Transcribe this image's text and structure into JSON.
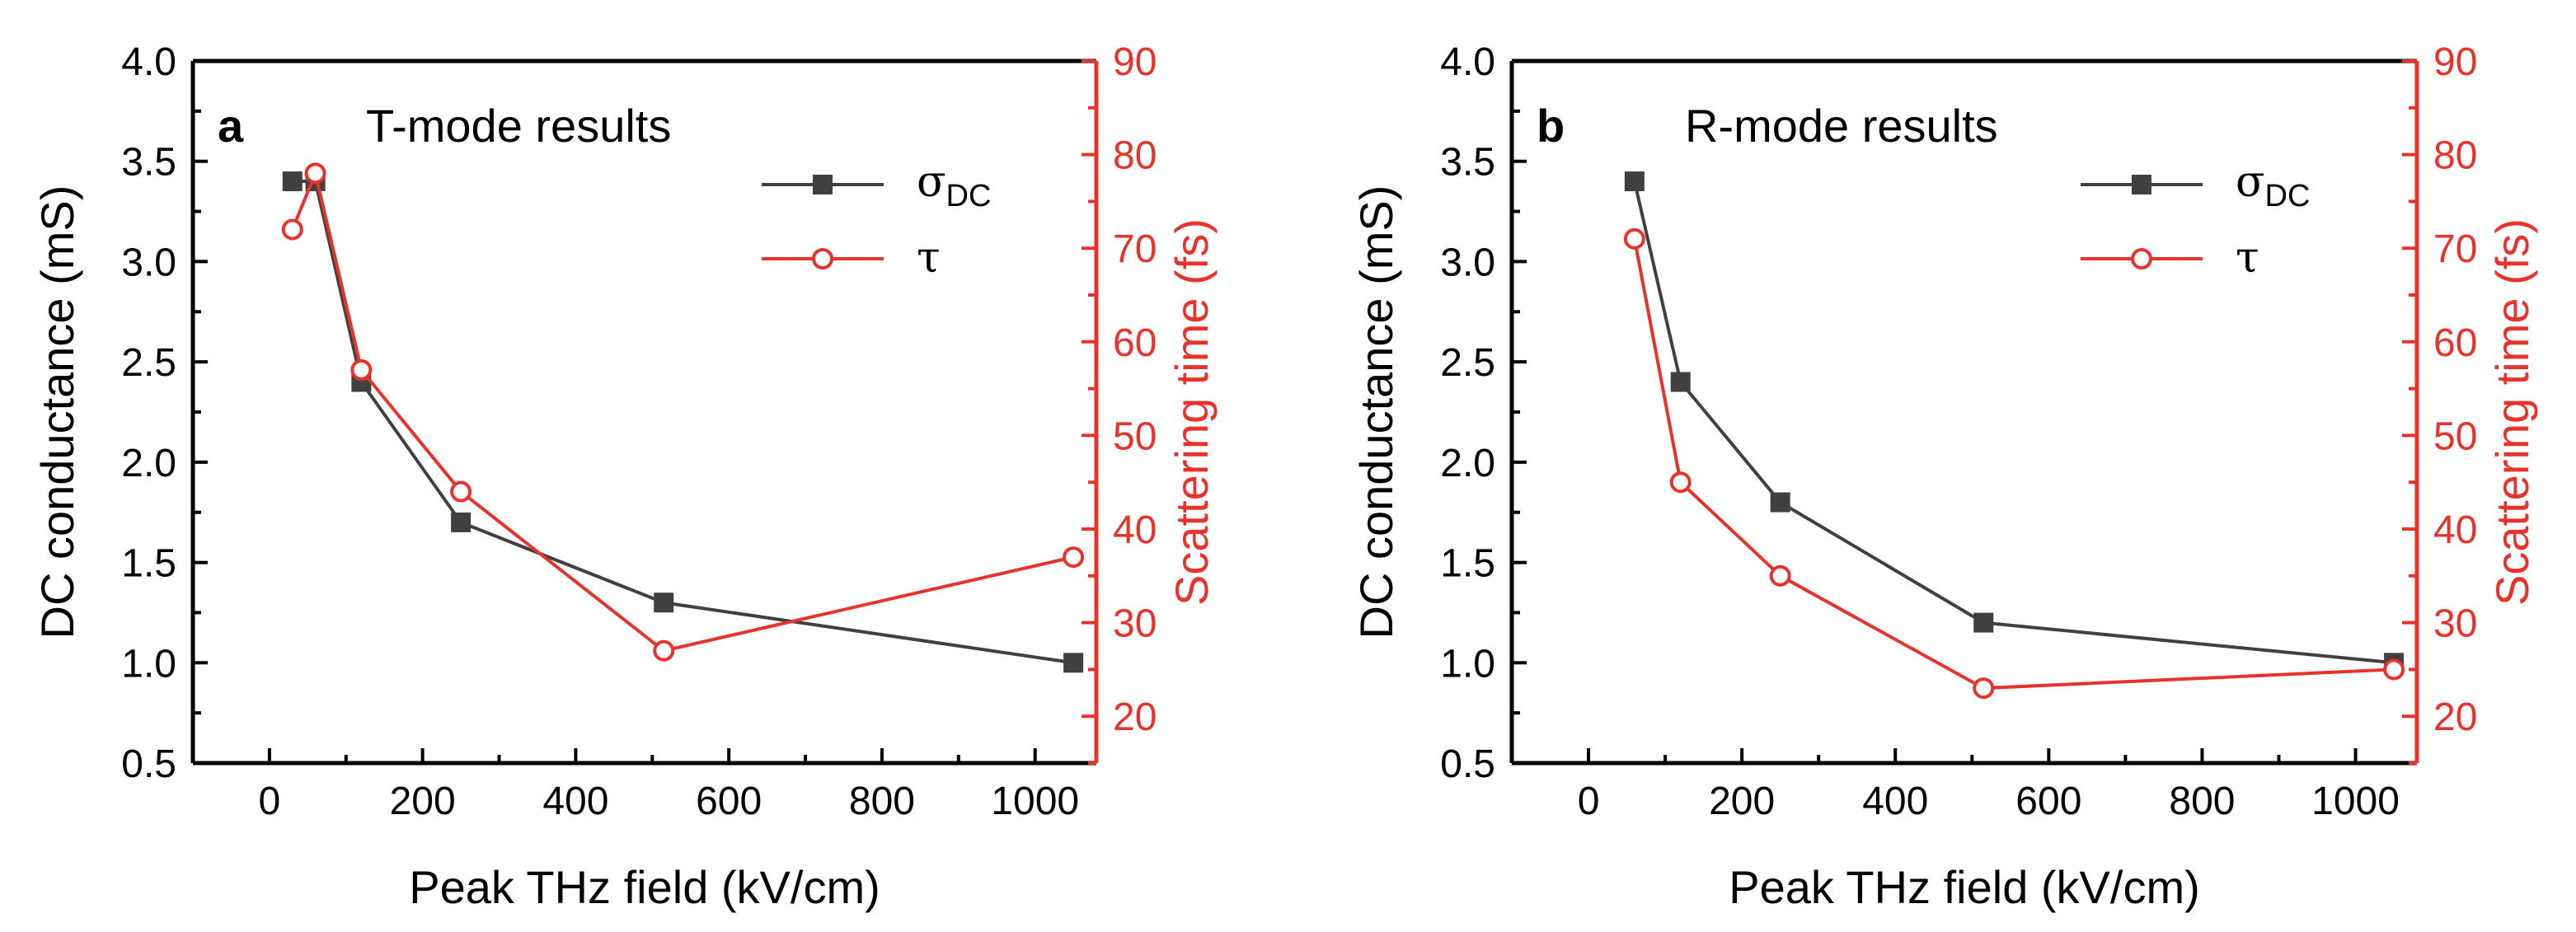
{
  "colors": {
    "sigma": "#404040",
    "tau": "#e8322c",
    "axis": "#000000",
    "right_axis": "#e8322c"
  },
  "chart_data": [
    {
      "type": "line",
      "panel_letter": "a",
      "title": "T-mode results",
      "xlabel": "Peak THz field (kV/cm)",
      "ylabel": "DC conductance (mS)",
      "y2label": "Scattering time (fs)",
      "xlim": [
        -100,
        1080
      ],
      "ylim": [
        0.5,
        4.0
      ],
      "y2lim": [
        15,
        90
      ],
      "xticks": [
        0,
        200,
        400,
        600,
        800,
        1000
      ],
      "xtick_labels": [
        "0",
        "200",
        "400",
        "600",
        "800",
        "1000"
      ],
      "yticks": [
        0.5,
        1.0,
        1.5,
        2.0,
        2.5,
        3.0,
        3.5,
        4.0
      ],
      "ytick_labels": [
        "0.5",
        "1.0",
        "1.5",
        "2.0",
        "2.5",
        "3.0",
        "3.5",
        "4.0"
      ],
      "y2ticks": [
        20,
        30,
        40,
        50,
        60,
        70,
        80,
        90
      ],
      "y2tick_labels": [
        "20",
        "30",
        "40",
        "50",
        "60",
        "70",
        "80",
        "90"
      ],
      "legend": {
        "sigma_main": "σ",
        "sigma_sub": "DC",
        "tau": "τ",
        "position": "top-right"
      },
      "series": [
        {
          "name": "σDC",
          "axis": "left",
          "marker": "square",
          "x": [
            30,
            60,
            120,
            250,
            515,
            1050
          ],
          "y": [
            3.4,
            3.4,
            2.4,
            1.7,
            1.3,
            1.0
          ]
        },
        {
          "name": "τ",
          "axis": "right",
          "marker": "open-circle",
          "x": [
            30,
            60,
            120,
            250,
            515,
            1050
          ],
          "y": [
            72,
            78,
            57,
            44,
            27,
            37
          ]
        }
      ]
    },
    {
      "type": "line",
      "panel_letter": "b",
      "title": "R-mode results",
      "xlabel": "Peak THz field (kV/cm)",
      "ylabel": "DC conductance (mS)",
      "y2label": "Scattering time (fs)",
      "xlim": [
        -100,
        1080
      ],
      "ylim": [
        0.5,
        4.0
      ],
      "y2lim": [
        15,
        90
      ],
      "xticks": [
        0,
        200,
        400,
        600,
        800,
        1000
      ],
      "xtick_labels": [
        "0",
        "200",
        "400",
        "600",
        "800",
        "1000"
      ],
      "yticks": [
        0.5,
        1.0,
        1.5,
        2.0,
        2.5,
        3.0,
        3.5,
        4.0
      ],
      "ytick_labels": [
        "0.5",
        "1.0",
        "1.5",
        "2.0",
        "2.5",
        "3.0",
        "3.5",
        "4.0"
      ],
      "y2ticks": [
        20,
        30,
        40,
        50,
        60,
        70,
        80,
        90
      ],
      "y2tick_labels": [
        "20",
        "30",
        "40",
        "50",
        "60",
        "70",
        "80",
        "90"
      ],
      "legend": {
        "sigma_main": "σ",
        "sigma_sub": "DC",
        "tau": "τ",
        "position": "top-right"
      },
      "series": [
        {
          "name": "σDC",
          "axis": "left",
          "marker": "square",
          "x": [
            60,
            120,
            250,
            515,
            1050
          ],
          "y": [
            3.4,
            2.4,
            1.8,
            1.2,
            1.0
          ]
        },
        {
          "name": "τ",
          "axis": "right",
          "marker": "open-circle",
          "x": [
            60,
            120,
            250,
            515,
            1050
          ],
          "y": [
            71,
            45,
            35,
            23,
            25
          ]
        }
      ]
    }
  ]
}
